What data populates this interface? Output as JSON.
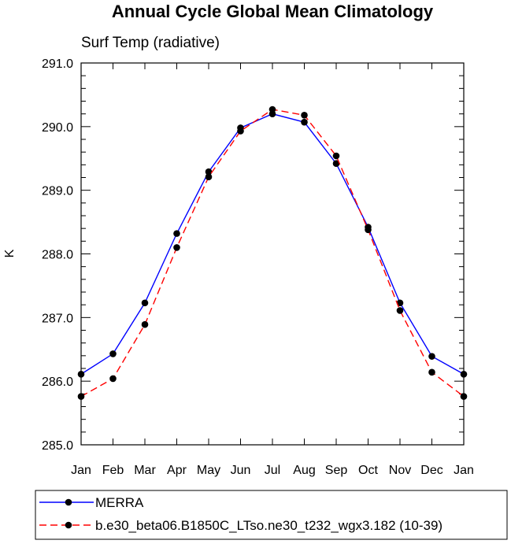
{
  "chart_data": {
    "type": "line",
    "title": "Annual Cycle Global Mean Climatology",
    "subtitle": "Surf Temp (radiative)",
    "xlabel": "",
    "ylabel": "K",
    "categories": [
      "Jan",
      "Feb",
      "Mar",
      "Apr",
      "May",
      "Jun",
      "Jul",
      "Aug",
      "Sep",
      "Oct",
      "Nov",
      "Dec",
      "Jan"
    ],
    "ylim": [
      285.0,
      291.0
    ],
    "yticks": [
      "285.0",
      "286.0",
      "287.0",
      "288.0",
      "289.0",
      "290.0",
      "291.0"
    ],
    "ytick_values": [
      285,
      286,
      287,
      288,
      289,
      290,
      291
    ],
    "series": [
      {
        "name": "MERRA",
        "color": "#0000ff",
        "style": "solid",
        "values": [
          286.11,
          286.43,
          287.23,
          288.32,
          289.29,
          289.98,
          290.2,
          290.07,
          289.42,
          288.42,
          287.23,
          286.39,
          286.11
        ]
      },
      {
        "name": "b.e30_beta06.B1850C_LTso.ne30_t232_wgx3.182 (10-39)",
        "color": "#ff0000",
        "style": "dashed",
        "values": [
          285.76,
          286.04,
          286.89,
          288.1,
          289.21,
          289.93,
          290.27,
          290.18,
          289.54,
          288.38,
          287.11,
          286.14,
          285.76
        ]
      }
    ],
    "grid": false,
    "legend_position": "bottom"
  }
}
